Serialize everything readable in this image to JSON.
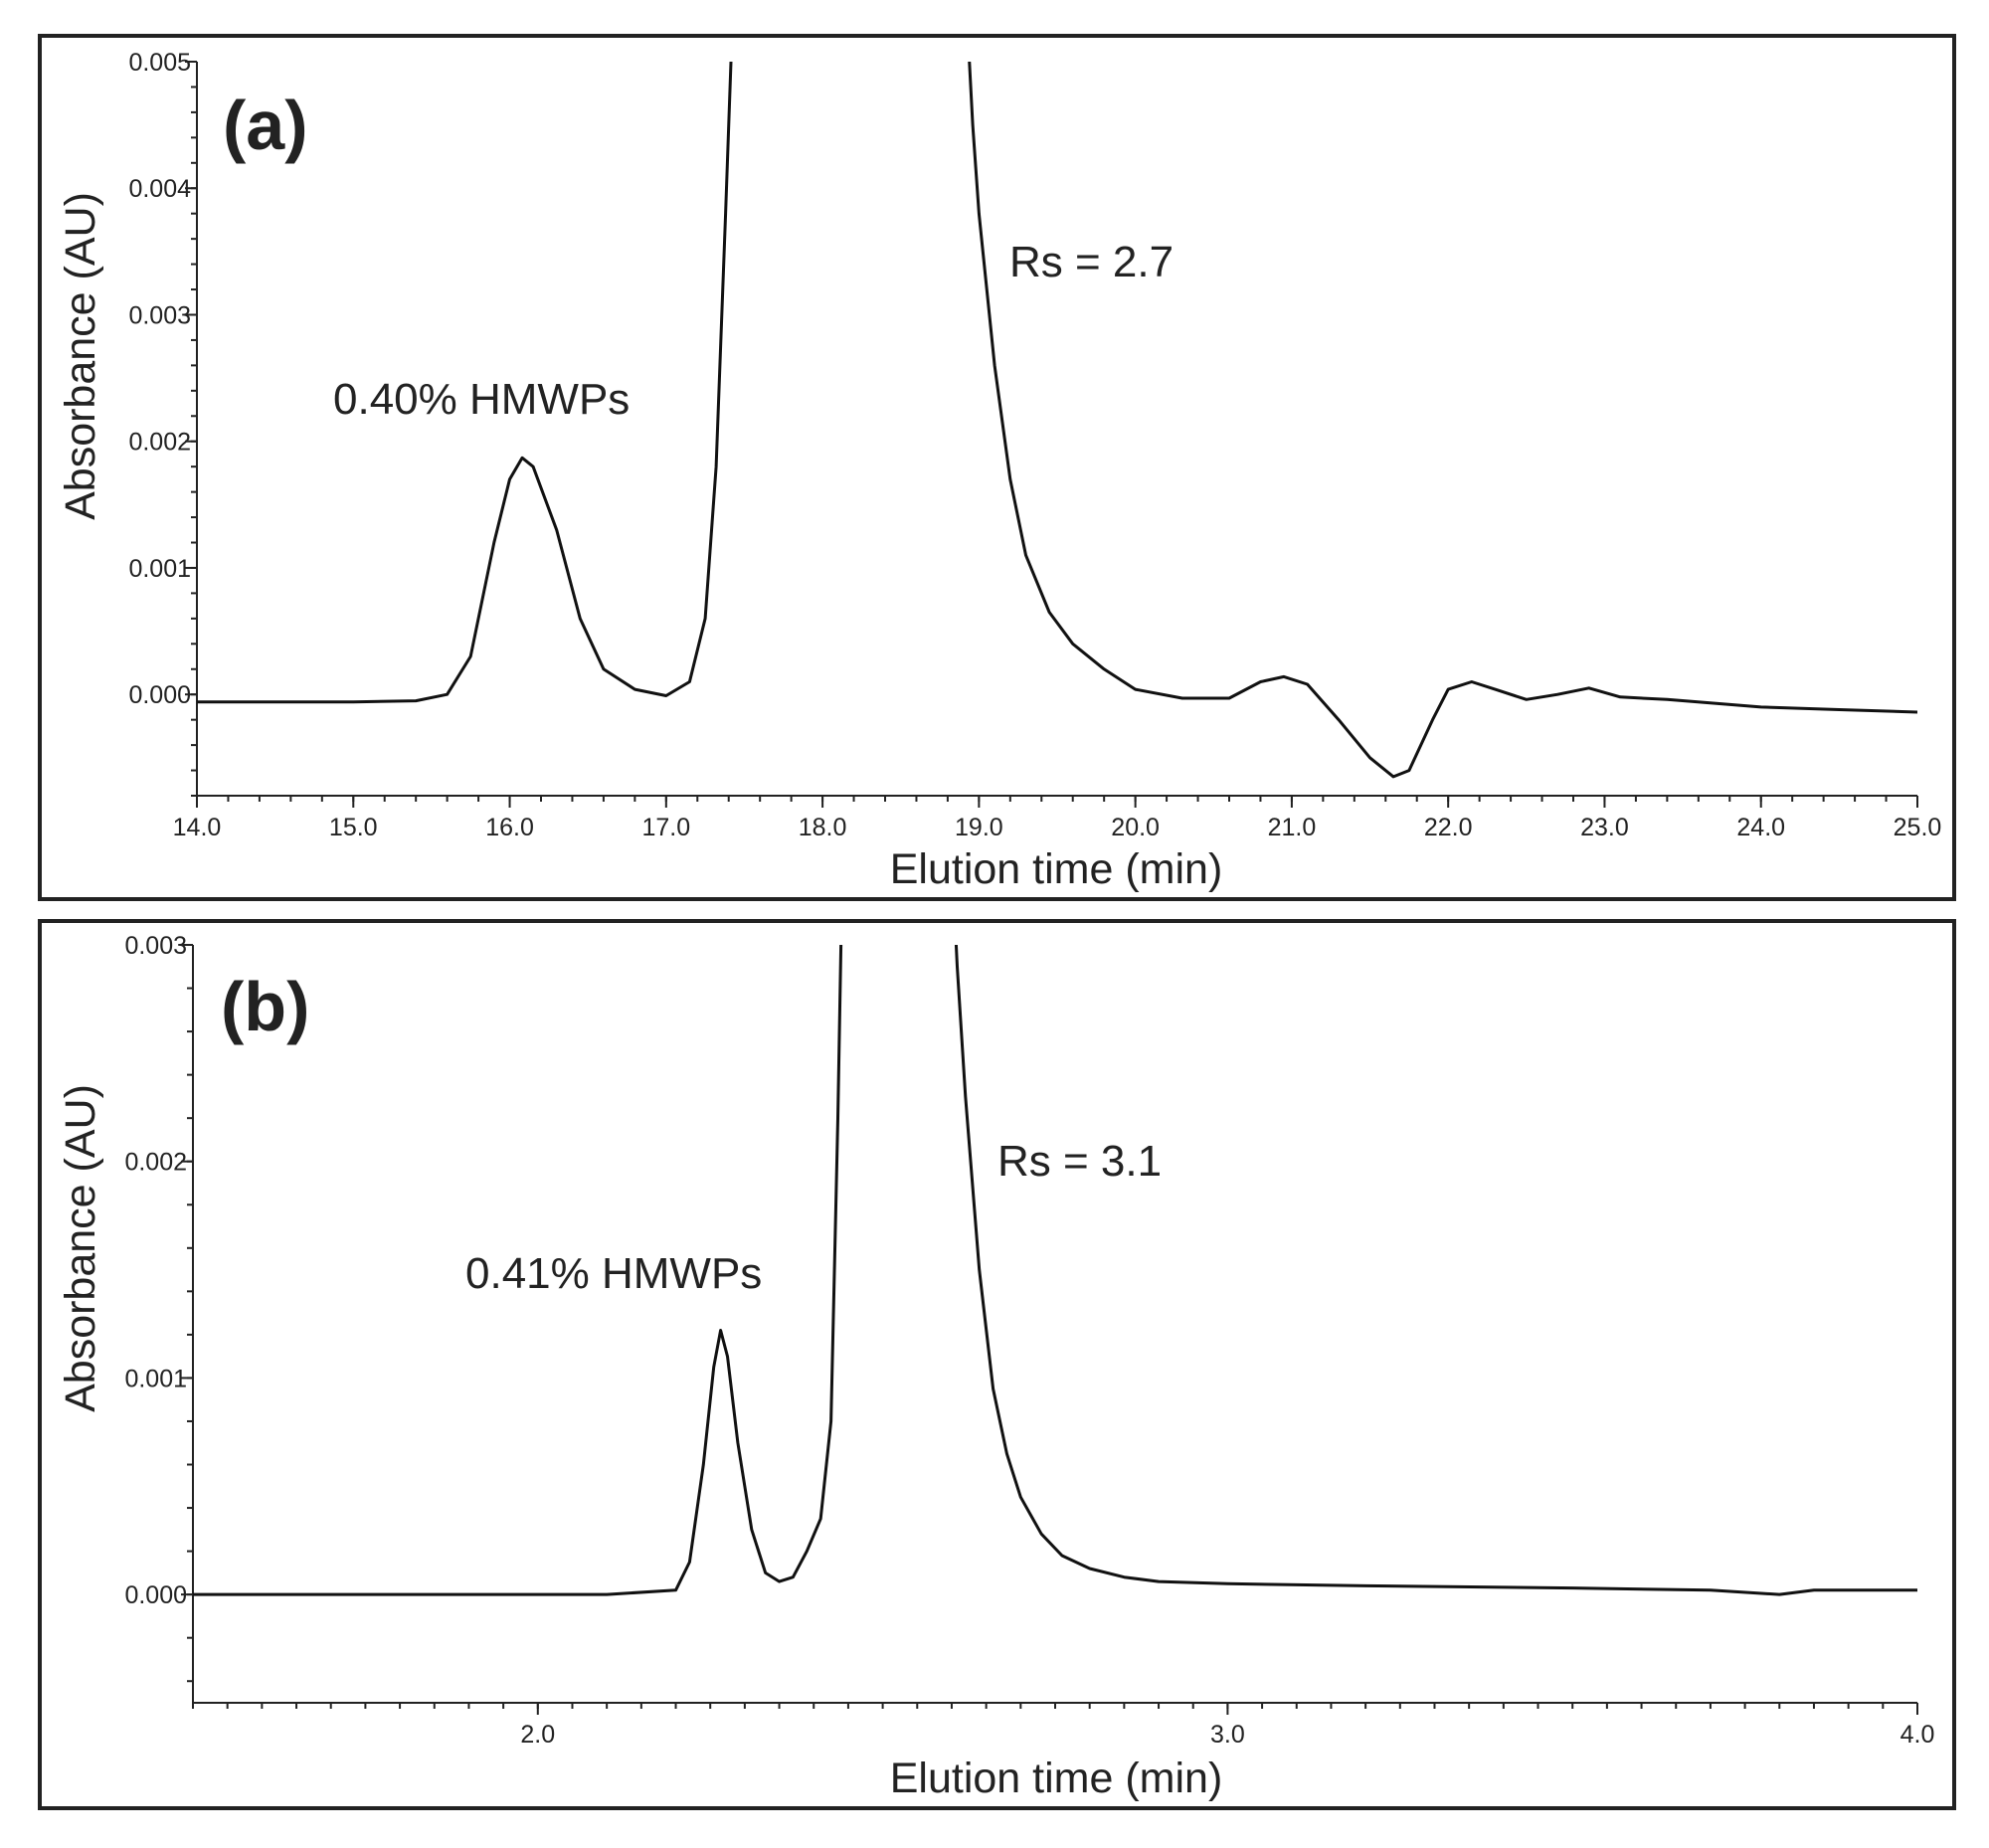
{
  "chart_data": [
    {
      "type": "line",
      "panel_label": "(a)",
      "xlabel": "Elution time (min)",
      "ylabel": "Absorbance (AU)",
      "xlim": [
        14.0,
        25.0
      ],
      "ylim": [
        -0.0008,
        0.005
      ],
      "x_ticks": [
        "14.0",
        "15.0",
        "16.0",
        "17.0",
        "18.0",
        "19.0",
        "20.0",
        "21.0",
        "22.0",
        "23.0",
        "24.0",
        "25.0"
      ],
      "y_ticks": [
        "0.000",
        "0.001",
        "0.002",
        "0.003",
        "0.004",
        "0.005"
      ],
      "annotations": [
        "0.40% HMWPs",
        "Rs = 2.7"
      ],
      "grid": false,
      "series": [
        {
          "x": [
            14.0,
            15.0,
            15.4,
            15.6,
            15.75,
            15.9,
            16.0,
            16.08,
            16.15,
            16.3,
            16.45,
            16.6,
            16.8,
            17.0,
            17.15,
            17.25,
            17.32,
            17.38,
            17.42,
            17.45,
            18.93,
            18.96,
            19.0,
            19.1,
            19.2,
            19.3,
            19.45,
            19.6,
            19.8,
            20.0,
            20.3,
            20.6,
            20.8,
            20.95,
            21.1,
            21.3,
            21.5,
            21.65,
            21.75,
            21.9,
            22.0,
            22.15,
            22.3,
            22.5,
            22.7,
            22.9,
            23.1,
            23.4,
            24.0,
            24.5,
            25.0
          ],
          "y": [
            -6e-05,
            -6e-05,
            -5e-05,
            0.0,
            0.0003,
            0.0012,
            0.0017,
            0.00187,
            0.0018,
            0.0013,
            0.0006,
            0.0002,
            4e-05,
            -1e-05,
            0.0001,
            0.0006,
            0.0018,
            0.0038,
            0.0052,
            0.0052,
            0.0052,
            0.0045,
            0.0038,
            0.0026,
            0.0017,
            0.0011,
            0.00065,
            0.0004,
            0.0002,
            4e-05,
            -3e-05,
            -3e-05,
            0.0001,
            0.00014,
            8e-05,
            -0.0002,
            -0.0005,
            -0.00065,
            -0.0006,
            -0.0002,
            4e-05,
            0.0001,
            4e-05,
            -4e-05,
            0.0,
            5e-05,
            -2e-05,
            -4e-05,
            -0.0001,
            -0.00012,
            -0.00014
          ]
        }
      ]
    },
    {
      "type": "line",
      "panel_label": "(b)",
      "xlabel": "Elution time (min)",
      "ylabel": "Absorbance (AU)",
      "xlim": [
        1.5,
        4.0
      ],
      "ylim": [
        -0.0005,
        0.003
      ],
      "x_ticks": [
        "2.0",
        "3.0",
        "4.0"
      ],
      "y_ticks": [
        "0.000",
        "0.001",
        "0.002",
        "0.003"
      ],
      "annotations": [
        "0.41% HMWPs",
        "Rs = 3.1"
      ],
      "grid": false,
      "series": [
        {
          "x": [
            1.5,
            1.8,
            2.1,
            2.2,
            2.22,
            2.24,
            2.255,
            2.265,
            2.275,
            2.29,
            2.31,
            2.33,
            2.35,
            2.37,
            2.39,
            2.41,
            2.425,
            2.435,
            2.44,
            2.445,
            2.605,
            2.608,
            2.62,
            2.64,
            2.66,
            2.68,
            2.7,
            2.73,
            2.76,
            2.8,
            2.85,
            2.9,
            3.0,
            3.2,
            3.5,
            3.7,
            3.8,
            3.85,
            4.0
          ],
          "y": [
            0.0,
            0.0,
            0.0,
            2e-05,
            0.00015,
            0.0006,
            0.00105,
            0.00122,
            0.0011,
            0.0007,
            0.0003,
            0.0001,
            6e-05,
            8e-05,
            0.0002,
            0.00035,
            0.0008,
            0.0022,
            0.0031,
            0.0031,
            0.0031,
            0.0029,
            0.0023,
            0.0015,
            0.00095,
            0.00065,
            0.00045,
            0.00028,
            0.00018,
            0.00012,
            8e-05,
            6e-05,
            5e-05,
            4e-05,
            3e-05,
            2e-05,
            0.0,
            2e-05,
            2e-05
          ]
        }
      ]
    }
  ]
}
